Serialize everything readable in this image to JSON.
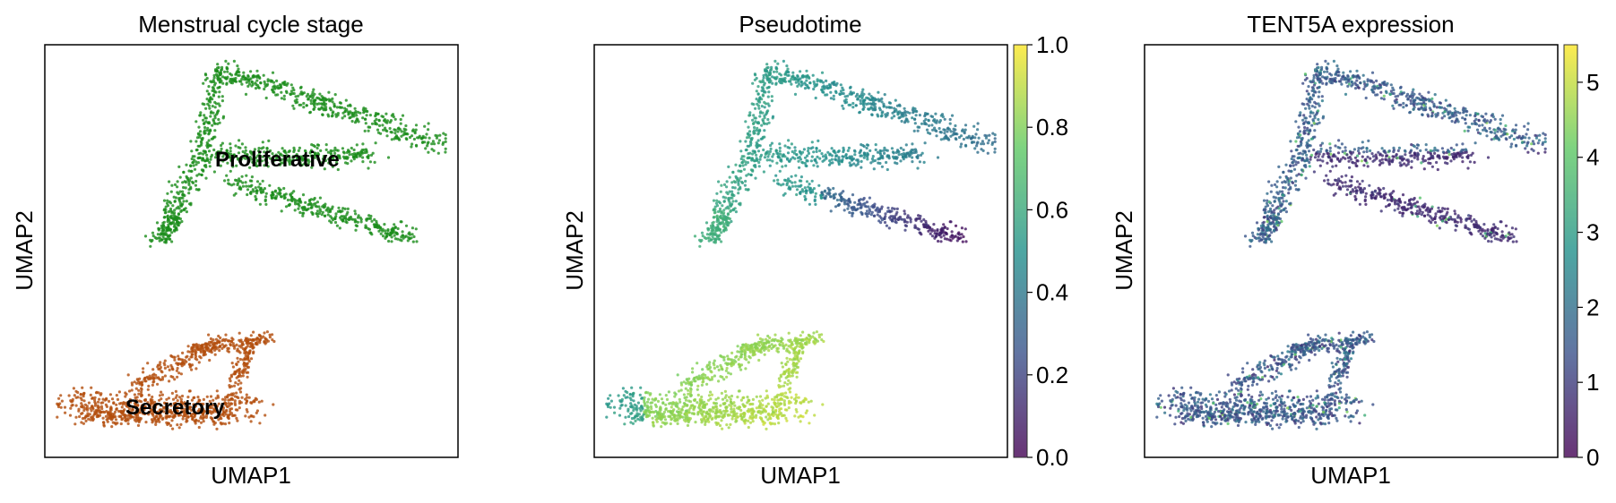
{
  "chart_data": [
    {
      "type": "scatter",
      "title": "Menstrual cycle stage",
      "xlabel": "UMAP1",
      "ylabel": "UMAP2",
      "color_by": "categorical",
      "groups": [
        {
          "label": "Proliferative",
          "color": "#1a8c1a"
        },
        {
          "label": "Secretory",
          "color": "#b34d0d"
        }
      ],
      "annotations": [
        "Proliferative",
        "Secretory"
      ],
      "grid": false,
      "axis_ticks": false
    },
    {
      "type": "scatter",
      "title": "Pseudotime",
      "xlabel": "UMAP1",
      "ylabel": "UMAP2",
      "color_by": "continuous",
      "colormap": "viridis",
      "colorbar": {
        "min": 0.0,
        "max": 1.0,
        "ticks": [
          "0.0",
          "0.2",
          "0.4",
          "0.6",
          "0.8",
          "1.0"
        ]
      },
      "grid": false,
      "axis_ticks": false
    },
    {
      "type": "scatter",
      "title": "TENT5A expression",
      "xlabel": "UMAP1",
      "ylabel": "UMAP2",
      "color_by": "continuous",
      "colormap": "viridis",
      "colorbar": {
        "min": 0,
        "max": 5.5,
        "ticks": [
          "0",
          "1",
          "2",
          "3",
          "4",
          "5"
        ]
      },
      "grid": false,
      "axis_ticks": false
    }
  ],
  "colors": {
    "proliferative": "#1a8c1a",
    "secretory": "#b34d0d",
    "viridis": [
      "#440154",
      "#3b528b",
      "#21918c",
      "#5ec962",
      "#fde725"
    ]
  }
}
